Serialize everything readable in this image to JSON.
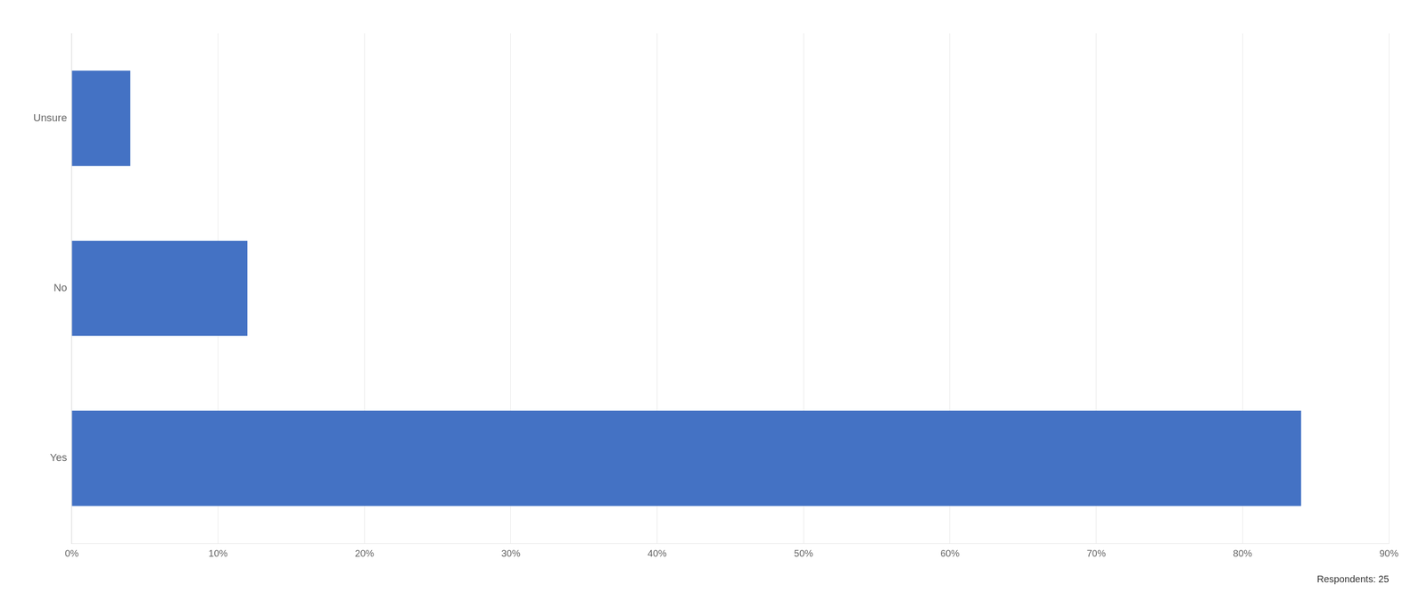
{
  "chart_data": {
    "type": "bar",
    "orientation": "horizontal",
    "categories": [
      "Unsure",
      "No",
      "Yes"
    ],
    "values": [
      4,
      12,
      84
    ],
    "color": "#4472C4",
    "xlim": [
      0,
      90
    ],
    "xticks": [
      {
        "value": 0,
        "label": "0%"
      },
      {
        "value": 10,
        "label": "10%"
      },
      {
        "value": 20,
        "label": "20%"
      },
      {
        "value": 30,
        "label": "30%"
      },
      {
        "value": 40,
        "label": "40%"
      },
      {
        "value": 50,
        "label": "50%"
      },
      {
        "value": 60,
        "label": "60%"
      },
      {
        "value": 70,
        "label": "70%"
      },
      {
        "value": 80,
        "label": "80%"
      },
      {
        "value": 90,
        "label": "90%"
      }
    ],
    "grid": true,
    "annotation": "Respondents: 25"
  }
}
